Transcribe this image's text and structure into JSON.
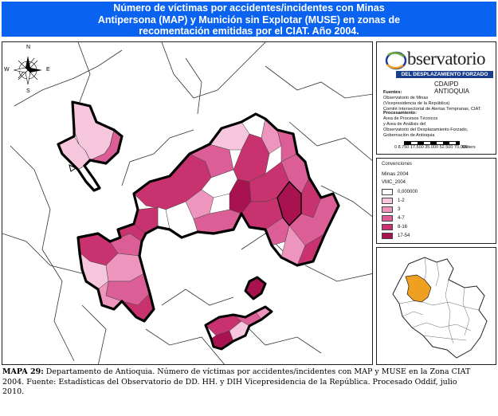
{
  "title": {
    "line1": "Número de víctimas por accidentes/incidentes con Minas",
    "line2": "Antipersona (MAP) y Munición sin Explotar (MUSE) en zonas de",
    "line3": "recomentación emitidas por el CIAT. Año 2004."
  },
  "compass": {
    "n": "N",
    "s": "S",
    "e": "E",
    "w": "W"
  },
  "logo": {
    "word": "bservatorio",
    "band": "DEL DESPLAZAMIENTO FORZADO",
    "sub": "CDAIPD ANTIOQUIA",
    "colors": {
      "band": "#1a3f8f",
      "ring_green": "#6aa842",
      "ring_orange": "#f0a020",
      "ring_blue": "#1a3f8f"
    }
  },
  "sources": {
    "fuentes_label": "Fuentes:",
    "fuentes_1": "Observatorio de Minas",
    "fuentes_2": "(Vicepresidencia de la República)",
    "fuentes_3": "Comité Intersectorial de Alertas Tempranas, CIAT.",
    "proc_label": "Procesamiento:",
    "proc_1": "Area de Procesos Técnicos",
    "proc_2": "y Area de Análisis del",
    "proc_3": "Observatorio del Desplazamiento Forzado,",
    "proc_4": "Gobernación de Antioquia"
  },
  "scale": {
    "numbers": "0  8.750  17.500  35.000  52.500  70.000",
    "unit": "Meters"
  },
  "legend": {
    "title": "Convenciones",
    "layer": "Minas 2004",
    "field": "VMC_2004",
    "classes": [
      {
        "label": "0,000000",
        "color": "#ffffff"
      },
      {
        "label": "1-2",
        "color": "#f6c6dc"
      },
      {
        "label": "3",
        "color": "#ee95bd"
      },
      {
        "label": "4-7",
        "color": "#dc5e97"
      },
      {
        "label": "8-16",
        "color": "#c8336f"
      },
      {
        "label": "17-54",
        "color": "#a8124f"
      }
    ]
  },
  "caption": {
    "label": "MAPA 29:",
    "text": " Departamento de Antioquia. Número de víctimas por accidentes/incidentes con MAP y MUSE en la Zona CIAT 2004. Fuente: Estadísticas del Observatorio de DD. HH. y DIH Vicepresidencia de la República. Procesado Oddif, julio 2010."
  },
  "colors": {
    "title_bg": "#0a62f0",
    "locator_highlight": "#f0a020"
  }
}
